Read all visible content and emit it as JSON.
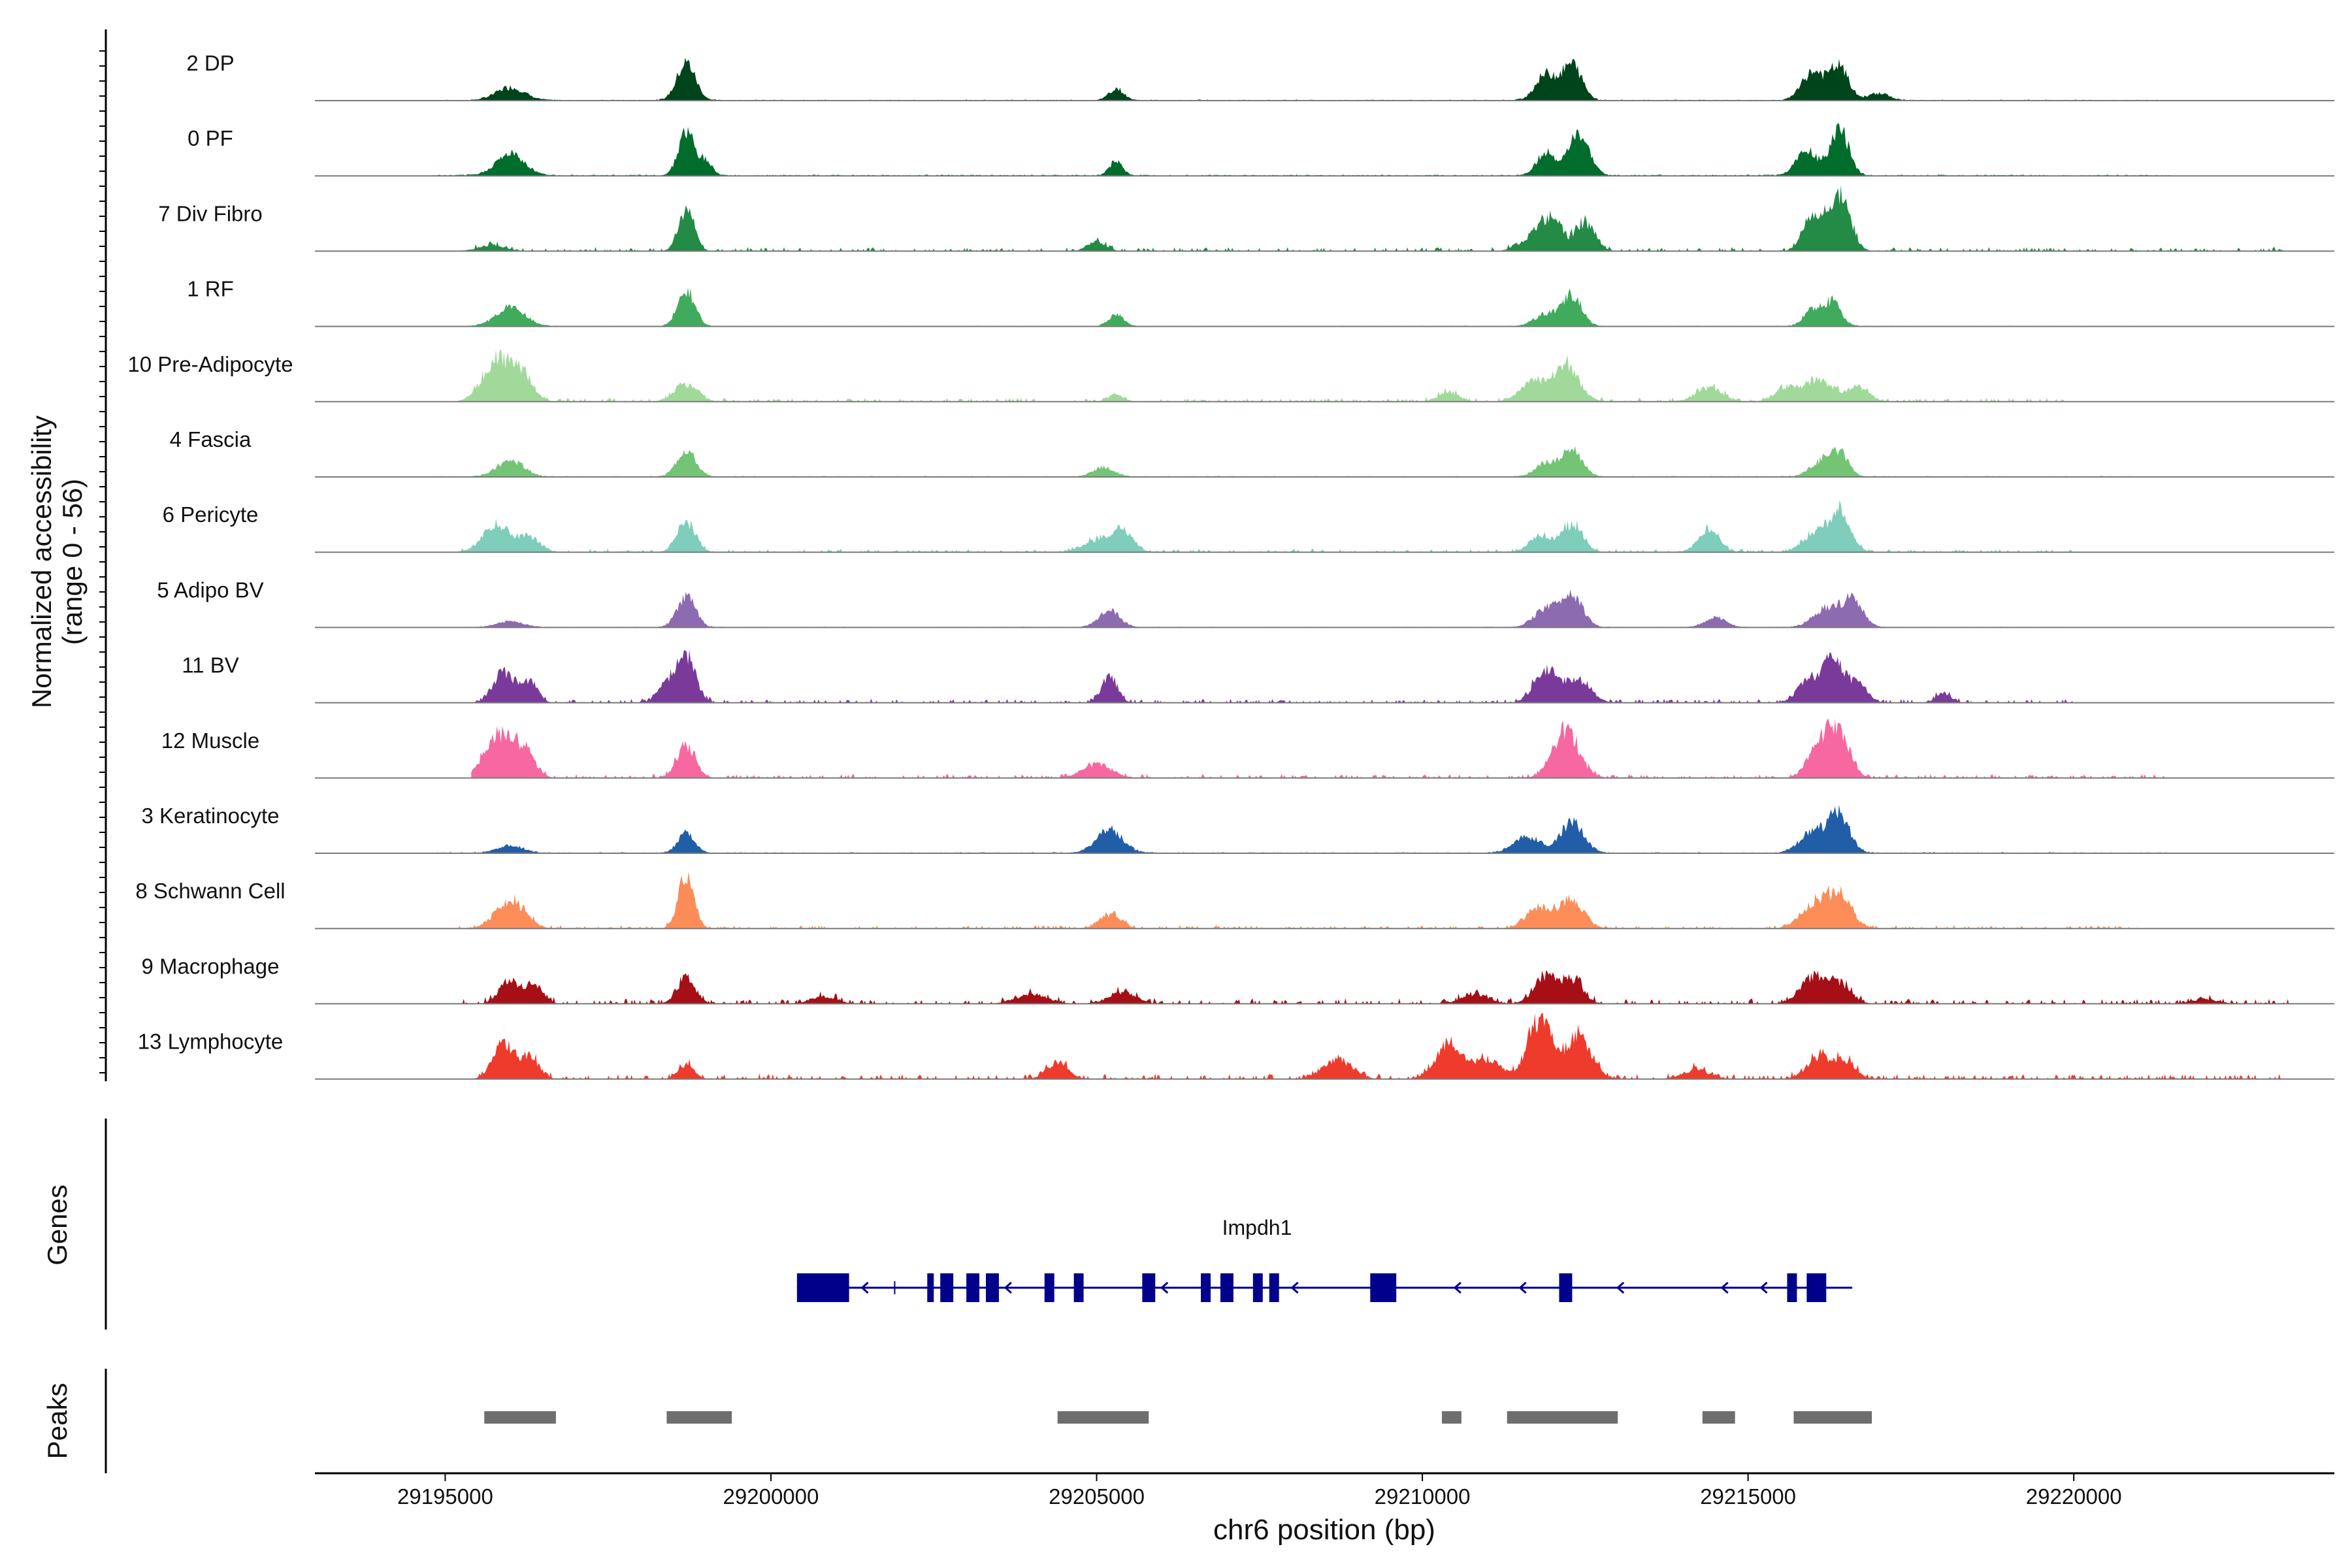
{
  "chart_data": {
    "type": "area",
    "y_axis_title_line1": "Normalized accessibility",
    "y_axis_title_line2": "(range 0 - 56)",
    "xlabel": "chr6 position (bp)",
    "xlim": [
      29193000,
      29224000
    ],
    "x_ticks": [
      29195000,
      29200000,
      29205000,
      29210000,
      29215000,
      29220000
    ],
    "x_tick_labels": [
      "29195000",
      "29200000",
      "29205000",
      "29210000",
      "29215000",
      "29220000"
    ],
    "ylim": [
      0,
      56
    ],
    "tracks": [
      {
        "name": "2 DP",
        "color": "#00441b",
        "peaks": [
          [
            29196000,
            11,
            220
          ],
          [
            29198700,
            32,
            140
          ],
          [
            29205300,
            10,
            110
          ],
          [
            29211900,
            22,
            160
          ],
          [
            29212300,
            30,
            150
          ],
          [
            29216000,
            24,
            170
          ],
          [
            29216400,
            28,
            140
          ],
          [
            29217000,
            6,
            160
          ]
        ],
        "noise": 2,
        "extent": [
          29194800,
          29221500
        ],
        "sparse": false
      },
      {
        "name": "0 PF",
        "color": "#006d2c",
        "peaks": [
          [
            29196000,
            18,
            220
          ],
          [
            29198700,
            38,
            120
          ],
          [
            29199000,
            12,
            100
          ],
          [
            29205300,
            12,
            100
          ],
          [
            29211900,
            20,
            140
          ],
          [
            29212400,
            34,
            160
          ],
          [
            29215900,
            22,
            160
          ],
          [
            29216400,
            40,
            140
          ]
        ],
        "noise": 2.5,
        "extent": [
          29194800,
          29221500
        ],
        "sparse": false
      },
      {
        "name": "7 Div Fibro",
        "color": "#238b45",
        "peaks": [
          [
            29195700,
            5,
            200
          ],
          [
            29198700,
            34,
            120
          ],
          [
            29205000,
            8,
            140
          ],
          [
            29211700,
            12,
            200
          ],
          [
            29212000,
            26,
            150
          ],
          [
            29212500,
            24,
            150
          ],
          [
            29216000,
            30,
            150
          ],
          [
            29216400,
            48,
            160
          ]
        ],
        "noise": 3,
        "extent": [
          29195200,
          29223300
        ],
        "sparse": true
      },
      {
        "name": "1 RF",
        "color": "#41ab5d",
        "peaks": [
          [
            29196000,
            16,
            220
          ],
          [
            29198700,
            30,
            130
          ],
          [
            29205300,
            10,
            110
          ],
          [
            29211900,
            10,
            180
          ],
          [
            29212300,
            26,
            150
          ],
          [
            29216000,
            14,
            140
          ],
          [
            29216300,
            20,
            130
          ]
        ],
        "noise": 1.5,
        "extent": [
          29194800,
          29221500
        ],
        "sparse": false
      },
      {
        "name": "10 Pre-Adipocyte",
        "color": "#a1d99b",
        "peaks": [
          [
            29195800,
            36,
            220
          ],
          [
            29196200,
            20,
            160
          ],
          [
            29198700,
            14,
            180
          ],
          [
            29205300,
            6,
            120
          ],
          [
            29210400,
            8,
            160
          ],
          [
            29211700,
            16,
            200
          ],
          [
            29212200,
            30,
            200
          ],
          [
            29214400,
            12,
            200
          ],
          [
            29215600,
            12,
            180
          ],
          [
            29216100,
            18,
            220
          ],
          [
            29216700,
            12,
            160
          ]
        ],
        "noise": 3,
        "extent": [
          29195200,
          29220000
        ],
        "sparse": true
      },
      {
        "name": "4 Fascia",
        "color": "#74c476",
        "peaks": [
          [
            29196000,
            14,
            200
          ],
          [
            29198700,
            24,
            140
          ],
          [
            29205100,
            8,
            160
          ],
          [
            29211900,
            12,
            160
          ],
          [
            29212300,
            24,
            150
          ],
          [
            29216100,
            12,
            160
          ],
          [
            29216400,
            20,
            140
          ]
        ],
        "noise": 2,
        "extent": [
          29194800,
          29221000
        ],
        "sparse": false
      },
      {
        "name": "6 Pericyte",
        "color": "#7fcdbb",
        "peaks": [
          [
            29195800,
            22,
            220
          ],
          [
            29196300,
            12,
            160
          ],
          [
            29198700,
            26,
            140
          ],
          [
            29205000,
            10,
            200
          ],
          [
            29205400,
            18,
            160
          ],
          [
            29211800,
            14,
            160
          ],
          [
            29212300,
            24,
            160
          ],
          [
            29214400,
            20,
            160
          ],
          [
            29216000,
            14,
            180
          ],
          [
            29216400,
            36,
            160
          ]
        ],
        "noise": 2.5,
        "extent": [
          29195200,
          29220000
        ],
        "sparse": true
      },
      {
        "name": "5 Adipo BV",
        "color": "#8c6bb1",
        "peaks": [
          [
            29196000,
            5,
            200
          ],
          [
            29198700,
            26,
            140
          ],
          [
            29205200,
            14,
            160
          ],
          [
            29211900,
            16,
            180
          ],
          [
            29212300,
            28,
            160
          ],
          [
            29214500,
            8,
            160
          ],
          [
            29216200,
            16,
            200
          ],
          [
            29216600,
            22,
            160
          ]
        ],
        "noise": 1.5,
        "extent": [
          29195200,
          29220000
        ],
        "sparse": false
      },
      {
        "name": "11 BV",
        "color": "#7a3a9a",
        "peaks": [
          [
            29195900,
            26,
            160
          ],
          [
            29196300,
            18,
            120
          ],
          [
            29198400,
            16,
            140
          ],
          [
            29198700,
            40,
            140
          ],
          [
            29205200,
            22,
            120
          ],
          [
            29211900,
            28,
            180
          ],
          [
            29212400,
            20,
            180
          ],
          [
            29215900,
            16,
            160
          ],
          [
            29216300,
            36,
            180
          ],
          [
            29216700,
            14,
            140
          ],
          [
            29218000,
            8,
            120
          ]
        ],
        "noise": 3,
        "extent": [
          29195400,
          29220000
        ],
        "sparse": true
      },
      {
        "name": "12 Muscle",
        "color": "#f768a1",
        "peaks": [
          [
            29195800,
            36,
            200
          ],
          [
            29196200,
            24,
            160
          ],
          [
            29198700,
            28,
            140
          ],
          [
            29205000,
            12,
            220
          ],
          [
            29212200,
            40,
            200
          ],
          [
            29216100,
            26,
            180
          ],
          [
            29216400,
            38,
            160
          ]
        ],
        "noise": 3,
        "extent": [
          29195400,
          29221500
        ],
        "sparse": true
      },
      {
        "name": "3 Keratinocyte",
        "color": "#225ea8",
        "peaks": [
          [
            29196000,
            6,
            200
          ],
          [
            29198700,
            16,
            130
          ],
          [
            29205200,
            20,
            200
          ],
          [
            29211600,
            14,
            200
          ],
          [
            29212300,
            26,
            180
          ],
          [
            29216000,
            18,
            200
          ],
          [
            29216400,
            32,
            160
          ]
        ],
        "noise": 2,
        "extent": [
          29194800,
          29221500
        ],
        "sparse": false
      },
      {
        "name": "8 Schwann Cell",
        "color": "#fc8d59",
        "peaks": [
          [
            29196000,
            24,
            220
          ],
          [
            29198700,
            46,
            120
          ],
          [
            29205200,
            12,
            160
          ],
          [
            29211800,
            18,
            200
          ],
          [
            29212300,
            24,
            180
          ],
          [
            29216000,
            20,
            200
          ],
          [
            29216400,
            28,
            180
          ]
        ],
        "noise": 2.5,
        "extent": [
          29195200,
          29221000
        ],
        "sparse": true
      },
      {
        "name": "9 Macrophage",
        "color": "#a50f15",
        "peaks": [
          [
            29196000,
            20,
            160
          ],
          [
            29196400,
            14,
            120
          ],
          [
            29198700,
            22,
            140
          ],
          [
            29200800,
            6,
            200
          ],
          [
            29204000,
            8,
            240
          ],
          [
            29205400,
            10,
            200
          ],
          [
            29210800,
            8,
            200
          ],
          [
            29211900,
            22,
            180
          ],
          [
            29212300,
            20,
            160
          ],
          [
            29216000,
            22,
            200
          ],
          [
            29216400,
            16,
            180
          ],
          [
            29222000,
            4,
            200
          ]
        ],
        "noise": 4,
        "extent": [
          29195200,
          29223300
        ],
        "sparse": true
      },
      {
        "name": "13 Lymphocyte",
        "color": "#ef3b2c",
        "peaks": [
          [
            29195900,
            30,
            160
          ],
          [
            29196300,
            18,
            140
          ],
          [
            29198700,
            12,
            120
          ],
          [
            29204400,
            14,
            160
          ],
          [
            29208700,
            16,
            220
          ],
          [
            29210400,
            28,
            200
          ],
          [
            29211000,
            16,
            220
          ],
          [
            29211800,
            52,
            180
          ],
          [
            29212400,
            36,
            200
          ],
          [
            29214200,
            8,
            200
          ],
          [
            29216100,
            18,
            200
          ],
          [
            29216500,
            14,
            160
          ]
        ],
        "noise": 4,
        "extent": [
          29195400,
          29223300
        ],
        "sparse": true
      }
    ],
    "genes_track_label": "Genes",
    "gene": {
      "name": "Impdh1",
      "start": 29200400,
      "end": 29216600,
      "strand": "-",
      "exons": [
        [
          29200400,
          29201200
        ],
        [
          29202400,
          29202500
        ],
        [
          29202600,
          29202800
        ],
        [
          29203000,
          29203200
        ],
        [
          29203300,
          29203500
        ],
        [
          29204200,
          29204350
        ],
        [
          29204650,
          29204800
        ],
        [
          29205700,
          29205900
        ],
        [
          29206600,
          29206750
        ],
        [
          29206900,
          29207100
        ],
        [
          29207400,
          29207550
        ],
        [
          29207650,
          29207800
        ],
        [
          29209200,
          29209600
        ],
        [
          29212100,
          29212300
        ],
        [
          29215600,
          29215750
        ],
        [
          29215900,
          29216200
        ]
      ],
      "direction_arrows": [
        29201400,
        29203600,
        29206000,
        29208000,
        29210500,
        29211500,
        29213000,
        29214600,
        29215200
      ]
    },
    "peaks_track_label": "Peaks",
    "peaks": [
      [
        29195600,
        29196700
      ],
      [
        29198400,
        29199400
      ],
      [
        29204400,
        29205800
      ],
      [
        29210300,
        29210600
      ],
      [
        29211300,
        29213000
      ],
      [
        29214300,
        29214800
      ],
      [
        29215700,
        29216900
      ]
    ]
  }
}
